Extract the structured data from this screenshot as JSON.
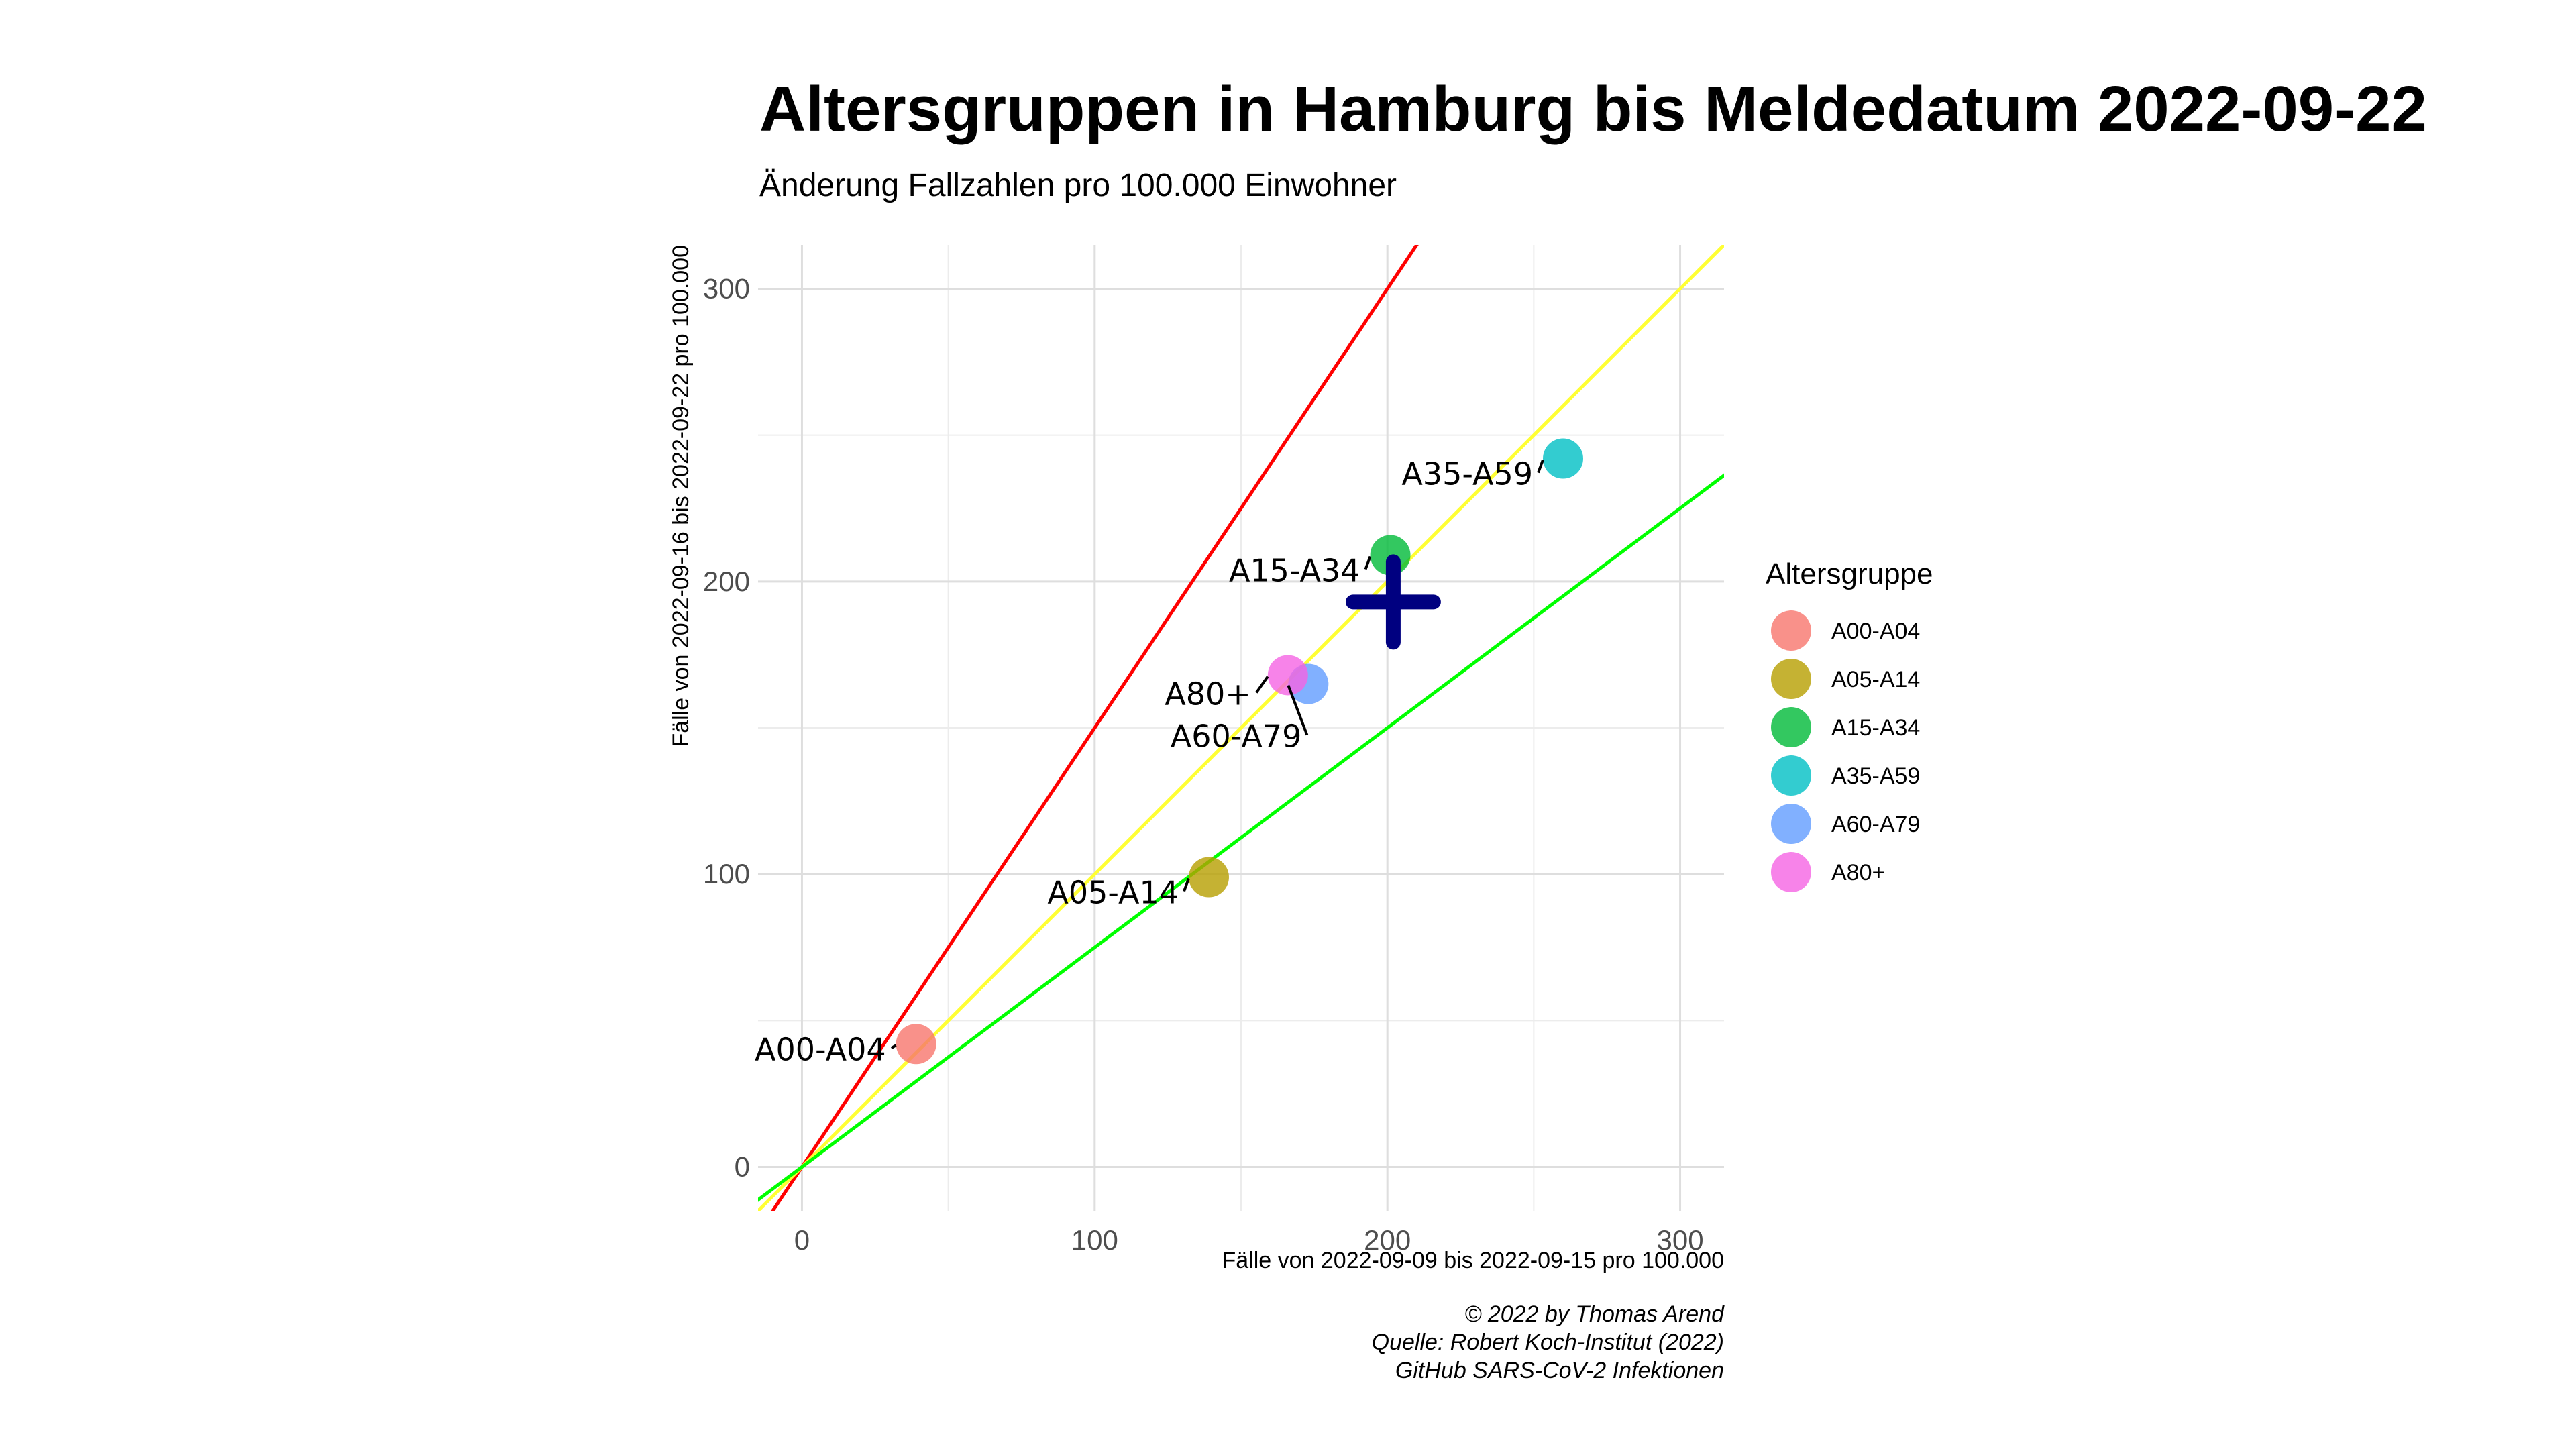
{
  "chart_data": {
    "type": "scatter",
    "title": "Altersgruppen in Hamburg bis Meldedatum 2022-09-22",
    "subtitle": "Änderung Fallzahlen pro 100.000 Einwohner",
    "xlabel": "Fälle von 2022-09-09 bis 2022-09-15 pro 100.000",
    "ylabel": "Fälle von 2022-09-16 bis 2022-09-22 pro 100.000",
    "xlim": [
      -15,
      315
    ],
    "ylim": [
      -15,
      315
    ],
    "x_ticks": [
      0,
      100,
      200,
      300
    ],
    "y_ticks": [
      0,
      100,
      200,
      300
    ],
    "grid": true,
    "legend_title": "Altersgruppe",
    "legend_position": "right",
    "reference_lines": [
      {
        "slope": 1.5,
        "color": "#ff0000"
      },
      {
        "slope": 1.0,
        "color": "#ffff33"
      },
      {
        "slope": 0.75,
        "color": "#00ff00"
      }
    ],
    "points": [
      {
        "label": "A00-A04",
        "x": 39,
        "y": 42,
        "color": "#f8766d"
      },
      {
        "label": "A05-A14",
        "x": 139,
        "y": 99,
        "color": "#b79f00"
      },
      {
        "label": "A15-A34",
        "x": 201,
        "y": 209,
        "color": "#00ba38"
      },
      {
        "label": "A35-A59",
        "x": 260,
        "y": 242,
        "color": "#00bfc4"
      },
      {
        "label": "A60-A79",
        "x": 173,
        "y": 165,
        "color": "#619cff"
      },
      {
        "label": "A80+",
        "x": 166,
        "y": 168,
        "color": "#f564e3"
      }
    ],
    "mean_marker": {
      "x": 202,
      "y": 193,
      "color": "#000080"
    }
  },
  "caption": [
    "© 2022 by Thomas Arend",
    "Quelle: Robert Koch-Institut (2022)",
    "GitHub SARS-CoV-2 Infektionen"
  ]
}
